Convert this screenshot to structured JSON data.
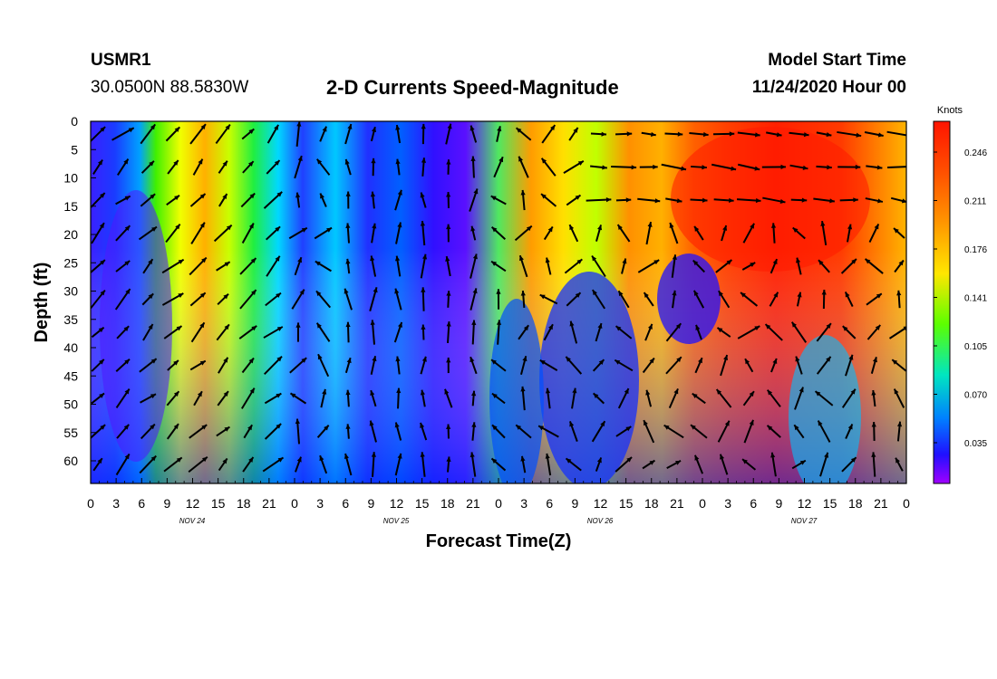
{
  "header": {
    "station": "USMR1",
    "coordinates": "30.0500N 88.5830W",
    "title": "2-D Currents Speed-Magnitude",
    "model_start_label": "Model Start Time",
    "model_start_value": "11/24/2020 Hour 00"
  },
  "chart_data": {
    "type": "heatmap",
    "title": "2-D Currents Speed-Magnitude",
    "xlabel": "Forecast Time(Z)",
    "ylabel": "Depth (ft)",
    "x_tick_labels": [
      "0",
      "3",
      "6",
      "9",
      "12",
      "15",
      "18",
      "21",
      "0",
      "3",
      "6",
      "9",
      "12",
      "15",
      "18",
      "21",
      "0",
      "3",
      "6",
      "9",
      "12",
      "15",
      "18",
      "21",
      "0",
      "3",
      "6",
      "9",
      "12",
      "15",
      "18",
      "21",
      "0"
    ],
    "date_labels": [
      "NOV 24",
      "NOV 25",
      "NOV 26",
      "NOV 27"
    ],
    "y_tick_labels": [
      "0",
      "5",
      "10",
      "15",
      "20",
      "25",
      "30",
      "35",
      "40",
      "45",
      "50",
      "55",
      "60"
    ],
    "yrange_ft": [
      0,
      64
    ],
    "xrange_hours": [
      0,
      96
    ],
    "colorbar": {
      "label": "Knots",
      "ticks": [
        "0.246",
        "0.211",
        "0.176",
        "0.141",
        "0.105",
        "0.070",
        "0.035"
      ],
      "colors": [
        "#ff1a00",
        "#ff5a00",
        "#ff9a00",
        "#ffd600",
        "#c8ff00",
        "#3cff00",
        "#00e070",
        "#00d8e8",
        "#0090ff",
        "#0030ff",
        "#4010ff",
        "#8000ff",
        "#b000ff"
      ]
    },
    "speed_profile_surface_knots": [
      0.04,
      0.05,
      0.1,
      0.2,
      0.14,
      0.1,
      0.08,
      0.05,
      0.04,
      0.05,
      0.13,
      0.18,
      0.15,
      0.12,
      0.2,
      0.22,
      0.24,
      0.25,
      0.26
    ],
    "vectors": "current direction arrows at 3-hour intervals and ~6 ft depth spacing"
  },
  "colors": {
    "frame": "#000000",
    "arrow": "#000000"
  }
}
